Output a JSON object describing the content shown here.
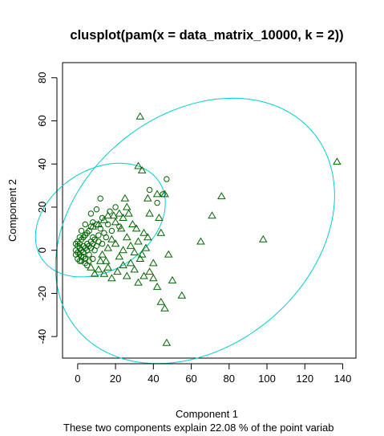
{
  "chart_data": {
    "type": "scatter",
    "title": "clusplot(pam(x = data_matrix_10000, k = 2))",
    "xlabel": "Component 1",
    "ylabel": "Component 2",
    "subtitle": "These two components explain 22.08 % of the point variab",
    "xlim": [
      -8,
      147
    ],
    "ylim": [
      -50,
      87
    ],
    "x_ticks": [
      0,
      20,
      40,
      60,
      80,
      100,
      120,
      140
    ],
    "y_ticks": [
      -40,
      -20,
      0,
      20,
      40,
      60,
      80
    ],
    "grid": false,
    "colors": {
      "points": "#006400",
      "ellipse": "#00CED1",
      "frame": "#000000"
    },
    "clusters": [
      {
        "marker": "circle",
        "ellipse": {
          "center": [
            12,
            14
          ],
          "rx": 36,
          "ry": 24,
          "angle_deg": 24
        },
        "points": [
          [
            -1,
            3
          ],
          [
            -1,
            0
          ],
          [
            0,
            -1
          ],
          [
            0,
            2
          ],
          [
            0,
            4
          ],
          [
            1,
            -2
          ],
          [
            1,
            1
          ],
          [
            1,
            3
          ],
          [
            2,
            0
          ],
          [
            2,
            5
          ],
          [
            2,
            -3
          ],
          [
            3,
            2
          ],
          [
            3,
            6
          ],
          [
            3,
            -1
          ],
          [
            4,
            1
          ],
          [
            4,
            7
          ],
          [
            4,
            -4
          ],
          [
            5,
            3
          ],
          [
            5,
            0
          ],
          [
            5,
            8
          ],
          [
            6,
            2
          ],
          [
            6,
            -2
          ],
          [
            6,
            9
          ],
          [
            7,
            4
          ],
          [
            7,
            1
          ],
          [
            7,
            11
          ],
          [
            8,
            3
          ],
          [
            8,
            6
          ],
          [
            8,
            13
          ],
          [
            9,
            0
          ],
          [
            9,
            5
          ],
          [
            10,
            2
          ],
          [
            10,
            12
          ],
          [
            11,
            7
          ],
          [
            11,
            4
          ],
          [
            12,
            10
          ],
          [
            13,
            3
          ],
          [
            13,
            15
          ],
          [
            14,
            8
          ],
          [
            15,
            6
          ],
          [
            16,
            12
          ],
          [
            17,
            18
          ],
          [
            18,
            9
          ],
          [
            20,
            20
          ],
          [
            22,
            11
          ],
          [
            -1,
            -2
          ],
          [
            0,
            -4
          ],
          [
            2,
            -5
          ],
          [
            4,
            -6
          ],
          [
            3,
            -3
          ],
          [
            1,
            -5
          ],
          [
            6,
            -5
          ],
          [
            8,
            -4
          ],
          [
            5,
            -7
          ],
          [
            2,
            9
          ],
          [
            1,
            6
          ],
          [
            4,
            12
          ],
          [
            7,
            17
          ],
          [
            10,
            19
          ],
          [
            12,
            24
          ],
          [
            47,
            33
          ],
          [
            45,
            26
          ],
          [
            42,
            22
          ],
          [
            38,
            28
          ]
        ]
      },
      {
        "marker": "triangle",
        "ellipse": {
          "center": [
            62,
            9
          ],
          "rx": 78,
          "ry": 56,
          "angle_deg": 28
        },
        "points": [
          [
            33,
            62
          ],
          [
            137,
            41
          ],
          [
            32,
            39
          ],
          [
            34,
            37
          ],
          [
            42,
            26
          ],
          [
            46,
            26
          ],
          [
            37,
            24
          ],
          [
            76,
            25
          ],
          [
            71,
            16
          ],
          [
            98,
            5
          ],
          [
            65,
            4
          ],
          [
            48,
            -2
          ],
          [
            44,
            8
          ],
          [
            43,
            15
          ],
          [
            38,
            17
          ],
          [
            37,
            6
          ],
          [
            35,
            8
          ],
          [
            32,
            4
          ],
          [
            30,
            -1
          ],
          [
            28,
            2
          ],
          [
            26,
            6
          ],
          [
            24,
            0
          ],
          [
            22,
            -3
          ],
          [
            20,
            3
          ],
          [
            28,
            -6
          ],
          [
            30,
            -9
          ],
          [
            33,
            -4
          ],
          [
            35,
            -12
          ],
          [
            40,
            -13
          ],
          [
            42,
            -17
          ],
          [
            46,
            -27
          ],
          [
            47,
            -43
          ],
          [
            55,
            -21
          ],
          [
            44,
            -24
          ],
          [
            50,
            -14
          ],
          [
            38,
            -10
          ],
          [
            32,
            -15
          ],
          [
            26,
            -12
          ],
          [
            24,
            -7
          ],
          [
            21,
            -10
          ],
          [
            18,
            -13
          ],
          [
            16,
            -8
          ],
          [
            14,
            -11
          ],
          [
            12,
            -5
          ],
          [
            20,
            13
          ],
          [
            24,
            15
          ],
          [
            27,
            17
          ],
          [
            22,
            17
          ],
          [
            26,
            20
          ],
          [
            8,
            11
          ],
          [
            11,
            12
          ],
          [
            14,
            14
          ],
          [
            16,
            16
          ],
          [
            19,
            16
          ],
          [
            25,
            24
          ],
          [
            29,
            12
          ],
          [
            34,
            -2
          ],
          [
            36,
            1
          ],
          [
            40,
            -6
          ],
          [
            18,
            5
          ],
          [
            16,
            1
          ],
          [
            13,
            -2
          ],
          [
            11,
            -9
          ],
          [
            9,
            -11
          ],
          [
            7,
            -8
          ],
          [
            15,
            -5
          ],
          [
            23,
            10
          ],
          [
            31,
            10
          ]
        ]
      }
    ]
  }
}
